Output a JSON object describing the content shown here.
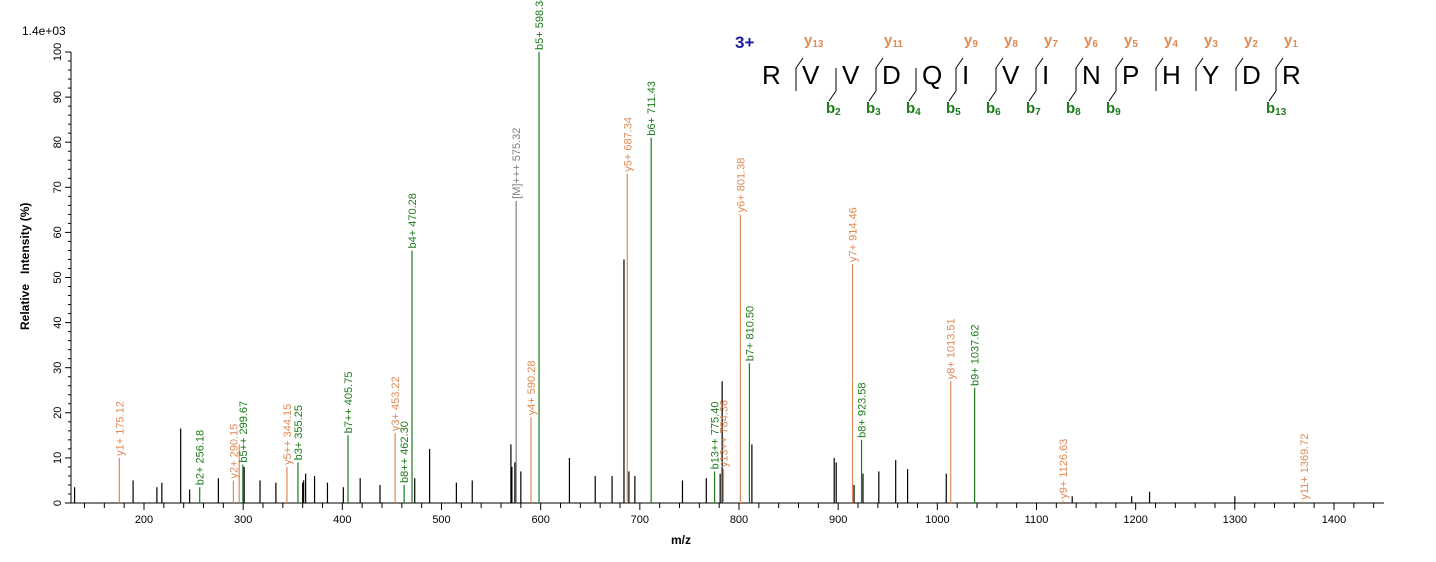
{
  "chart_data": {
    "type": "bar",
    "title": "",
    "scale_label": "1.4e+03",
    "xlabel": "m/z",
    "ylabel": "Relative   Intensity (%)",
    "xlim": [
      127,
      1450
    ],
    "ylim": [
      0,
      100
    ],
    "x_ticks": [
      200,
      300,
      400,
      500,
      600,
      700,
      800,
      900,
      1000,
      1100,
      1200,
      1300,
      1400
    ],
    "y_ticks": [
      0,
      10,
      20,
      30,
      40,
      50,
      60,
      70,
      80,
      90,
      100
    ],
    "grid": false,
    "legend": null,
    "colors": {
      "y_ion": "#e08a55",
      "b_ion": "#1c7a1c",
      "precursor": "#808080",
      "unassigned": "#000000"
    },
    "annotated_peaks": [
      {
        "label": "y1+ 175.12",
        "mz": 175.12,
        "intensity": 10,
        "type": "y"
      },
      {
        "label": "b2+ 256.18",
        "mz": 256.18,
        "intensity": 3.5,
        "type": "b"
      },
      {
        "label": "y2+ 290.15",
        "mz": 290.15,
        "intensity": 5,
        "type": "y"
      },
      {
        "label": "y",
        "mz": 296.0,
        "intensity": 13,
        "type": "y"
      },
      {
        "label": "b5++ 299.67",
        "mz": 299.67,
        "intensity": 8.5,
        "type": "b"
      },
      {
        "label": "y5++ 344.15",
        "mz": 344.15,
        "intensity": 8,
        "type": "y"
      },
      {
        "label": "b3+ 355.25",
        "mz": 355.25,
        "intensity": 9,
        "type": "b"
      },
      {
        "label": "b7++ 405.75",
        "mz": 405.75,
        "intensity": 15,
        "type": "b"
      },
      {
        "label": "y3+ 453.22",
        "mz": 453.22,
        "intensity": 15.5,
        "type": "y"
      },
      {
        "label": "b8++ 462.30",
        "mz": 462.3,
        "intensity": 4,
        "type": "b"
      },
      {
        "label": "b4+ 470.28",
        "mz": 470.28,
        "intensity": 56,
        "type": "b"
      },
      {
        "label": "[M]+++ 575.32",
        "mz": 575.32,
        "intensity": 67,
        "type": "precursor"
      },
      {
        "label": "y4+ 590.28",
        "mz": 590.28,
        "intensity": 19,
        "type": "y"
      },
      {
        "label": "b5+ 598.34",
        "mz": 598.34,
        "intensity": 100,
        "type": "b"
      },
      {
        "label": "y5+ 687.34",
        "mz": 687.34,
        "intensity": 73,
        "type": "y"
      },
      {
        "label": "b6+ 711.43",
        "mz": 711.43,
        "intensity": 81,
        "type": "b"
      },
      {
        "label": "b13++ 775.40",
        "mz": 775.4,
        "intensity": 7,
        "type": "b"
      },
      {
        "label": "y13++ 784.36",
        "mz": 784.36,
        "intensity": 7.5,
        "type": "y"
      },
      {
        "label": "y6+ 801.38",
        "mz": 801.38,
        "intensity": 64,
        "type": "y"
      },
      {
        "label": "b7+ 810.50",
        "mz": 810.5,
        "intensity": 31,
        "type": "b"
      },
      {
        "label": "y7+ 914.46",
        "mz": 914.46,
        "intensity": 53,
        "type": "y"
      },
      {
        "label": "b8+ 923.58",
        "mz": 923.58,
        "intensity": 14,
        "type": "b"
      },
      {
        "label": "y8+ 1013.51",
        "mz": 1013.51,
        "intensity": 27,
        "type": "y"
      },
      {
        "label": "b9+ 1037.62",
        "mz": 1037.62,
        "intensity": 25.5,
        "type": "b"
      },
      {
        "label": "y9+ 1126.63",
        "mz": 1126.63,
        "intensity": 0.5,
        "type": "y"
      },
      {
        "label": "y11+ 1369.72",
        "mz": 1369.72,
        "intensity": 0.3,
        "type": "y"
      }
    ],
    "unassigned_peaks": [
      {
        "mz": 130,
        "intensity": 3.5
      },
      {
        "mz": 189,
        "intensity": 5
      },
      {
        "mz": 213,
        "intensity": 3.5
      },
      {
        "mz": 218,
        "intensity": 4.5
      },
      {
        "mz": 237,
        "intensity": 16.5
      },
      {
        "mz": 246,
        "intensity": 3
      },
      {
        "mz": 275,
        "intensity": 5.5
      },
      {
        "mz": 301,
        "intensity": 8
      },
      {
        "mz": 317,
        "intensity": 5
      },
      {
        "mz": 333,
        "intensity": 4.5
      },
      {
        "mz": 360,
        "intensity": 4.5
      },
      {
        "mz": 361,
        "intensity": 5
      },
      {
        "mz": 363,
        "intensity": 6.5
      },
      {
        "mz": 372,
        "intensity": 6
      },
      {
        "mz": 385,
        "intensity": 4.5
      },
      {
        "mz": 401,
        "intensity": 3.5
      },
      {
        "mz": 418,
        "intensity": 5.5
      },
      {
        "mz": 438,
        "intensity": 4
      },
      {
        "mz": 473,
        "intensity": 5.5
      },
      {
        "mz": 488,
        "intensity": 12
      },
      {
        "mz": 515,
        "intensity": 4.5
      },
      {
        "mz": 531,
        "intensity": 5
      },
      {
        "mz": 570,
        "intensity": 13
      },
      {
        "mz": 571,
        "intensity": 8
      },
      {
        "mz": 574,
        "intensity": 9
      },
      {
        "mz": 580,
        "intensity": 7
      },
      {
        "mz": 629,
        "intensity": 10
      },
      {
        "mz": 655,
        "intensity": 6
      },
      {
        "mz": 672,
        "intensity": 6
      },
      {
        "mz": 684,
        "intensity": 54
      },
      {
        "mz": 689,
        "intensity": 7
      },
      {
        "mz": 695,
        "intensity": 6
      },
      {
        "mz": 743,
        "intensity": 5
      },
      {
        "mz": 767,
        "intensity": 5.5
      },
      {
        "mz": 781,
        "intensity": 6.5
      },
      {
        "mz": 783,
        "intensity": 27
      },
      {
        "mz": 813,
        "intensity": 13
      },
      {
        "mz": 896,
        "intensity": 10
      },
      {
        "mz": 898,
        "intensity": 9
      },
      {
        "mz": 916,
        "intensity": 4
      },
      {
        "mz": 925,
        "intensity": 6.5
      },
      {
        "mz": 941,
        "intensity": 7
      },
      {
        "mz": 958,
        "intensity": 9.5
      },
      {
        "mz": 970,
        "intensity": 7.5
      },
      {
        "mz": 1009,
        "intensity": 6.5
      },
      {
        "mz": 1136,
        "intensity": 1.5
      },
      {
        "mz": 1196,
        "intensity": 1.5
      },
      {
        "mz": 1214,
        "intensity": 2.5
      },
      {
        "mz": 1300,
        "intensity": 1.5
      }
    ]
  },
  "sequence_map": {
    "charge": "3+",
    "residues": [
      "R",
      "V",
      "V",
      "D",
      "Q",
      "I",
      "V",
      "I",
      "N",
      "P",
      "H",
      "Y",
      "D",
      "R"
    ],
    "y_ions": [
      {
        "n": "13",
        "after_index": 0
      },
      {
        "n": "11",
        "after_index": 2
      },
      {
        "n": "9",
        "after_index": 4
      },
      {
        "n": "8",
        "after_index": 5
      },
      {
        "n": "7",
        "after_index": 6
      },
      {
        "n": "6",
        "after_index": 7
      },
      {
        "n": "5",
        "after_index": 8
      },
      {
        "n": "4",
        "after_index": 9
      },
      {
        "n": "3",
        "after_index": 10
      },
      {
        "n": "2",
        "after_index": 11
      },
      {
        "n": "1",
        "after_index": 12
      }
    ],
    "b_ions": [
      {
        "n": "2",
        "after_index": 1
      },
      {
        "n": "3",
        "after_index": 2
      },
      {
        "n": "4",
        "after_index": 3
      },
      {
        "n": "5",
        "after_index": 4
      },
      {
        "n": "6",
        "after_index": 5
      },
      {
        "n": "7",
        "after_index": 6
      },
      {
        "n": "8",
        "after_index": 7
      },
      {
        "n": "9",
        "after_index": 8
      },
      {
        "n": "13",
        "after_index": 12
      }
    ]
  }
}
